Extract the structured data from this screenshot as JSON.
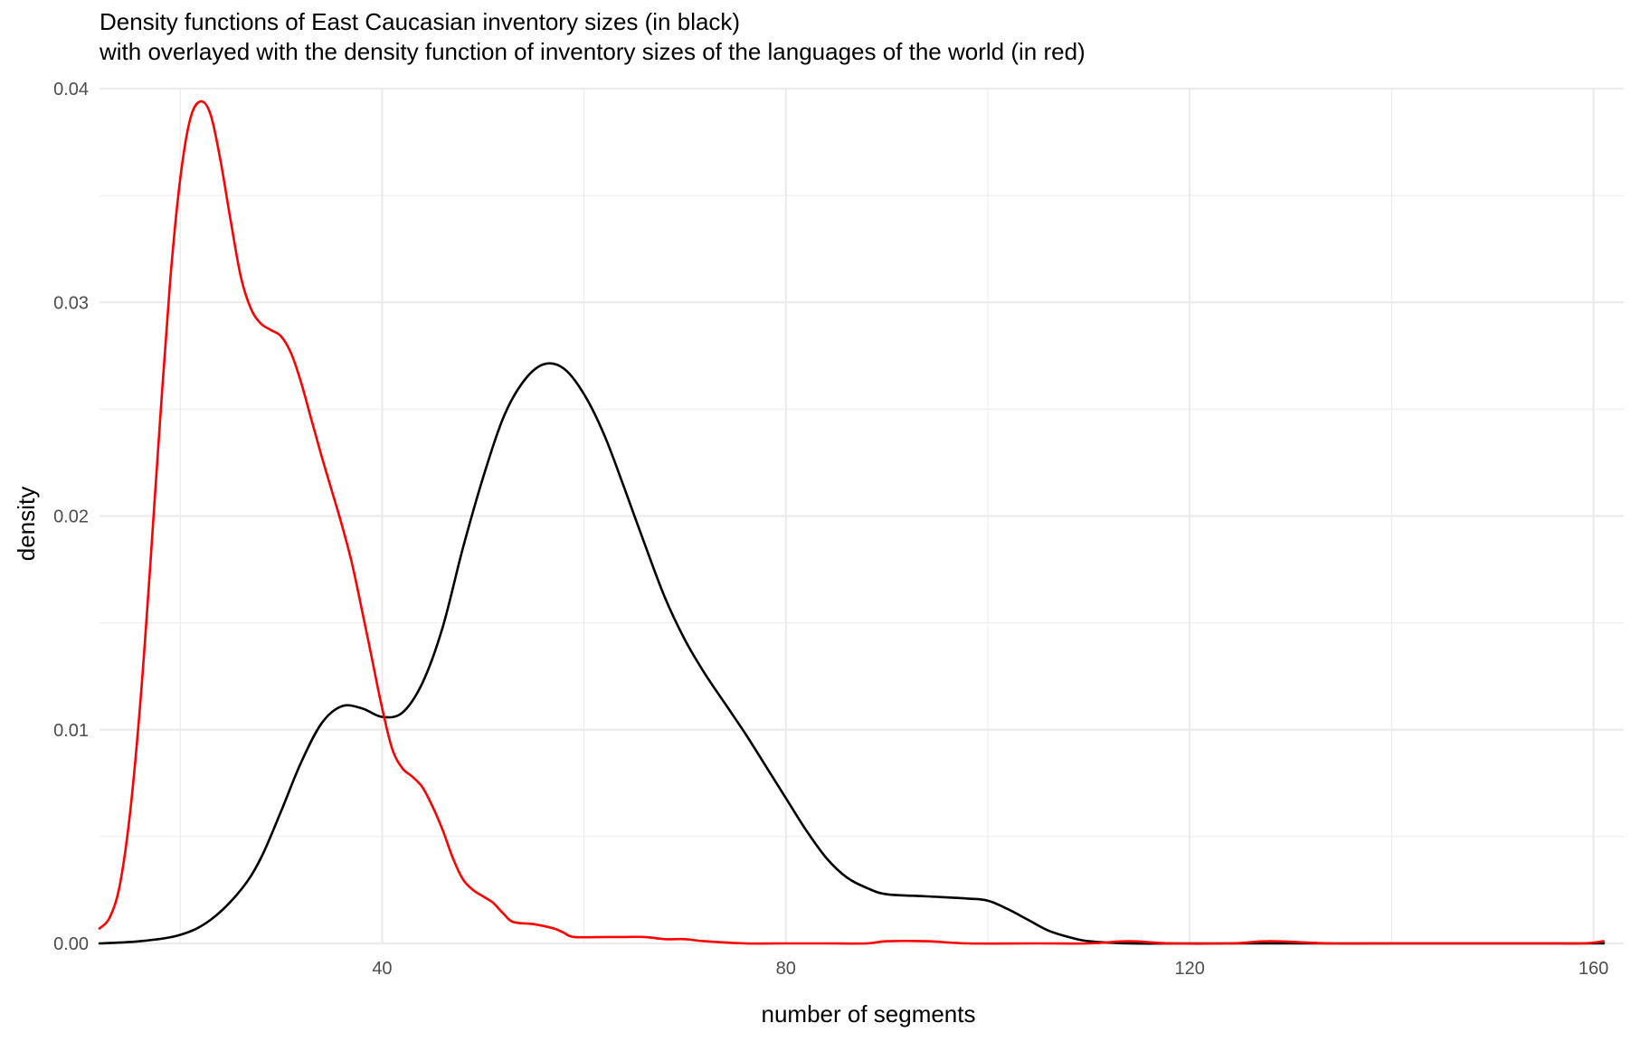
{
  "chart_data": {
    "type": "line",
    "title": "Density functions of East Caucasian inventory sizes (in black)",
    "subtitle": "with overlayed with the density function of inventory sizes of the languages of the world (in red)",
    "xlabel": "number of segments",
    "ylabel": "density",
    "xlim": [
      12,
      163
    ],
    "ylim": [
      0,
      0.04
    ],
    "x_ticks": [
      40,
      80,
      120,
      160
    ],
    "x_tick_labels": [
      "40",
      "80",
      "120",
      "160"
    ],
    "y_ticks": [
      0,
      0.01,
      0.02,
      0.03,
      0.04
    ],
    "y_tick_labels": [
      "0.00",
      "0.01",
      "0.02",
      "0.03",
      "0.04"
    ],
    "grid": true,
    "legend": "none",
    "series": [
      {
        "color": "#000000",
        "points": [
          [
            12,
            0.0
          ],
          [
            16,
            0.0001
          ],
          [
            20,
            0.0004
          ],
          [
            23,
            0.0011
          ],
          [
            26,
            0.0025
          ],
          [
            28,
            0.004
          ],
          [
            30,
            0.0062
          ],
          [
            32,
            0.0085
          ],
          [
            34,
            0.0103
          ],
          [
            36,
            0.0111
          ],
          [
            38,
            0.011
          ],
          [
            40,
            0.0106
          ],
          [
            42,
            0.0108
          ],
          [
            44,
            0.0122
          ],
          [
            46,
            0.0148
          ],
          [
            48,
            0.0185
          ],
          [
            50,
            0.0218
          ],
          [
            52,
            0.0246
          ],
          [
            54,
            0.0263
          ],
          [
            56,
            0.0271
          ],
          [
            58,
            0.0269
          ],
          [
            60,
            0.0257
          ],
          [
            62,
            0.0238
          ],
          [
            64,
            0.0213
          ],
          [
            66,
            0.0187
          ],
          [
            68,
            0.0162
          ],
          [
            70,
            0.0142
          ],
          [
            72,
            0.0126
          ],
          [
            74,
            0.0112
          ],
          [
            76,
            0.0098
          ],
          [
            78,
            0.0083
          ],
          [
            80,
            0.0068
          ],
          [
            82,
            0.0053
          ],
          [
            84,
            0.004
          ],
          [
            86,
            0.0031
          ],
          [
            88,
            0.0026
          ],
          [
            90,
            0.0023
          ],
          [
            94,
            0.0022
          ],
          [
            98,
            0.0021
          ],
          [
            100,
            0.002
          ],
          [
            102,
            0.0016
          ],
          [
            104,
            0.0011
          ],
          [
            106,
            0.0006
          ],
          [
            108,
            0.0003
          ],
          [
            110,
            0.0001
          ],
          [
            114,
            0.0
          ],
          [
            120,
            0.0
          ],
          [
            130,
            0.0
          ],
          [
            140,
            0.0
          ],
          [
            150,
            0.0
          ],
          [
            161,
            0.0
          ]
        ]
      },
      {
        "color": "#ff0000",
        "points": [
          [
            12,
            0.0007
          ],
          [
            13,
            0.0012
          ],
          [
            14,
            0.0027
          ],
          [
            15,
            0.006
          ],
          [
            16,
            0.011
          ],
          [
            17,
            0.0175
          ],
          [
            18,
            0.0245
          ],
          [
            19,
            0.031
          ],
          [
            20,
            0.0358
          ],
          [
            21,
            0.0386
          ],
          [
            22,
            0.0394
          ],
          [
            23,
            0.0388
          ],
          [
            24,
            0.0366
          ],
          [
            25,
            0.0338
          ],
          [
            26,
            0.0312
          ],
          [
            27,
            0.0297
          ],
          [
            28,
            0.029
          ],
          [
            29,
            0.0287
          ],
          [
            30,
            0.0284
          ],
          [
            31,
            0.0276
          ],
          [
            32,
            0.0262
          ],
          [
            33,
            0.0245
          ],
          [
            34,
            0.0228
          ],
          [
            35,
            0.0212
          ],
          [
            36,
            0.0196
          ],
          [
            37,
            0.0178
          ],
          [
            38,
            0.0156
          ],
          [
            39,
            0.0133
          ],
          [
            40,
            0.011
          ],
          [
            41,
            0.0091
          ],
          [
            42,
            0.0082
          ],
          [
            43,
            0.0078
          ],
          [
            44,
            0.0073
          ],
          [
            45,
            0.0064
          ],
          [
            46,
            0.0053
          ],
          [
            47,
            0.004
          ],
          [
            48,
            0.003
          ],
          [
            49,
            0.0025
          ],
          [
            50,
            0.0022
          ],
          [
            51,
            0.0019
          ],
          [
            52,
            0.0014
          ],
          [
            53,
            0.001
          ],
          [
            55,
            0.0009
          ],
          [
            57,
            0.0007
          ],
          [
            58,
            0.0005
          ],
          [
            59,
            0.0003
          ],
          [
            62,
            0.0003
          ],
          [
            64,
            0.0003
          ],
          [
            66,
            0.0003
          ],
          [
            68,
            0.0002
          ],
          [
            70,
            0.0002
          ],
          [
            72,
            0.0001
          ],
          [
            76,
            0.0
          ],
          [
            80,
            0.0
          ],
          [
            84,
            0.0
          ],
          [
            88,
            0.0
          ],
          [
            90,
            0.0001
          ],
          [
            94,
            0.0001
          ],
          [
            98,
            0.0
          ],
          [
            105,
            0.0
          ],
          [
            110,
            0.0
          ],
          [
            114,
            0.0001
          ],
          [
            118,
            0.0
          ],
          [
            124,
            0.0
          ],
          [
            128,
            0.0001
          ],
          [
            134,
            0.0
          ],
          [
            140,
            0.0
          ],
          [
            145,
            0.0
          ],
          [
            150,
            0.0
          ],
          [
            155,
            0.0
          ],
          [
            159,
            0.0
          ],
          [
            161,
            0.0001
          ]
        ]
      }
    ]
  }
}
